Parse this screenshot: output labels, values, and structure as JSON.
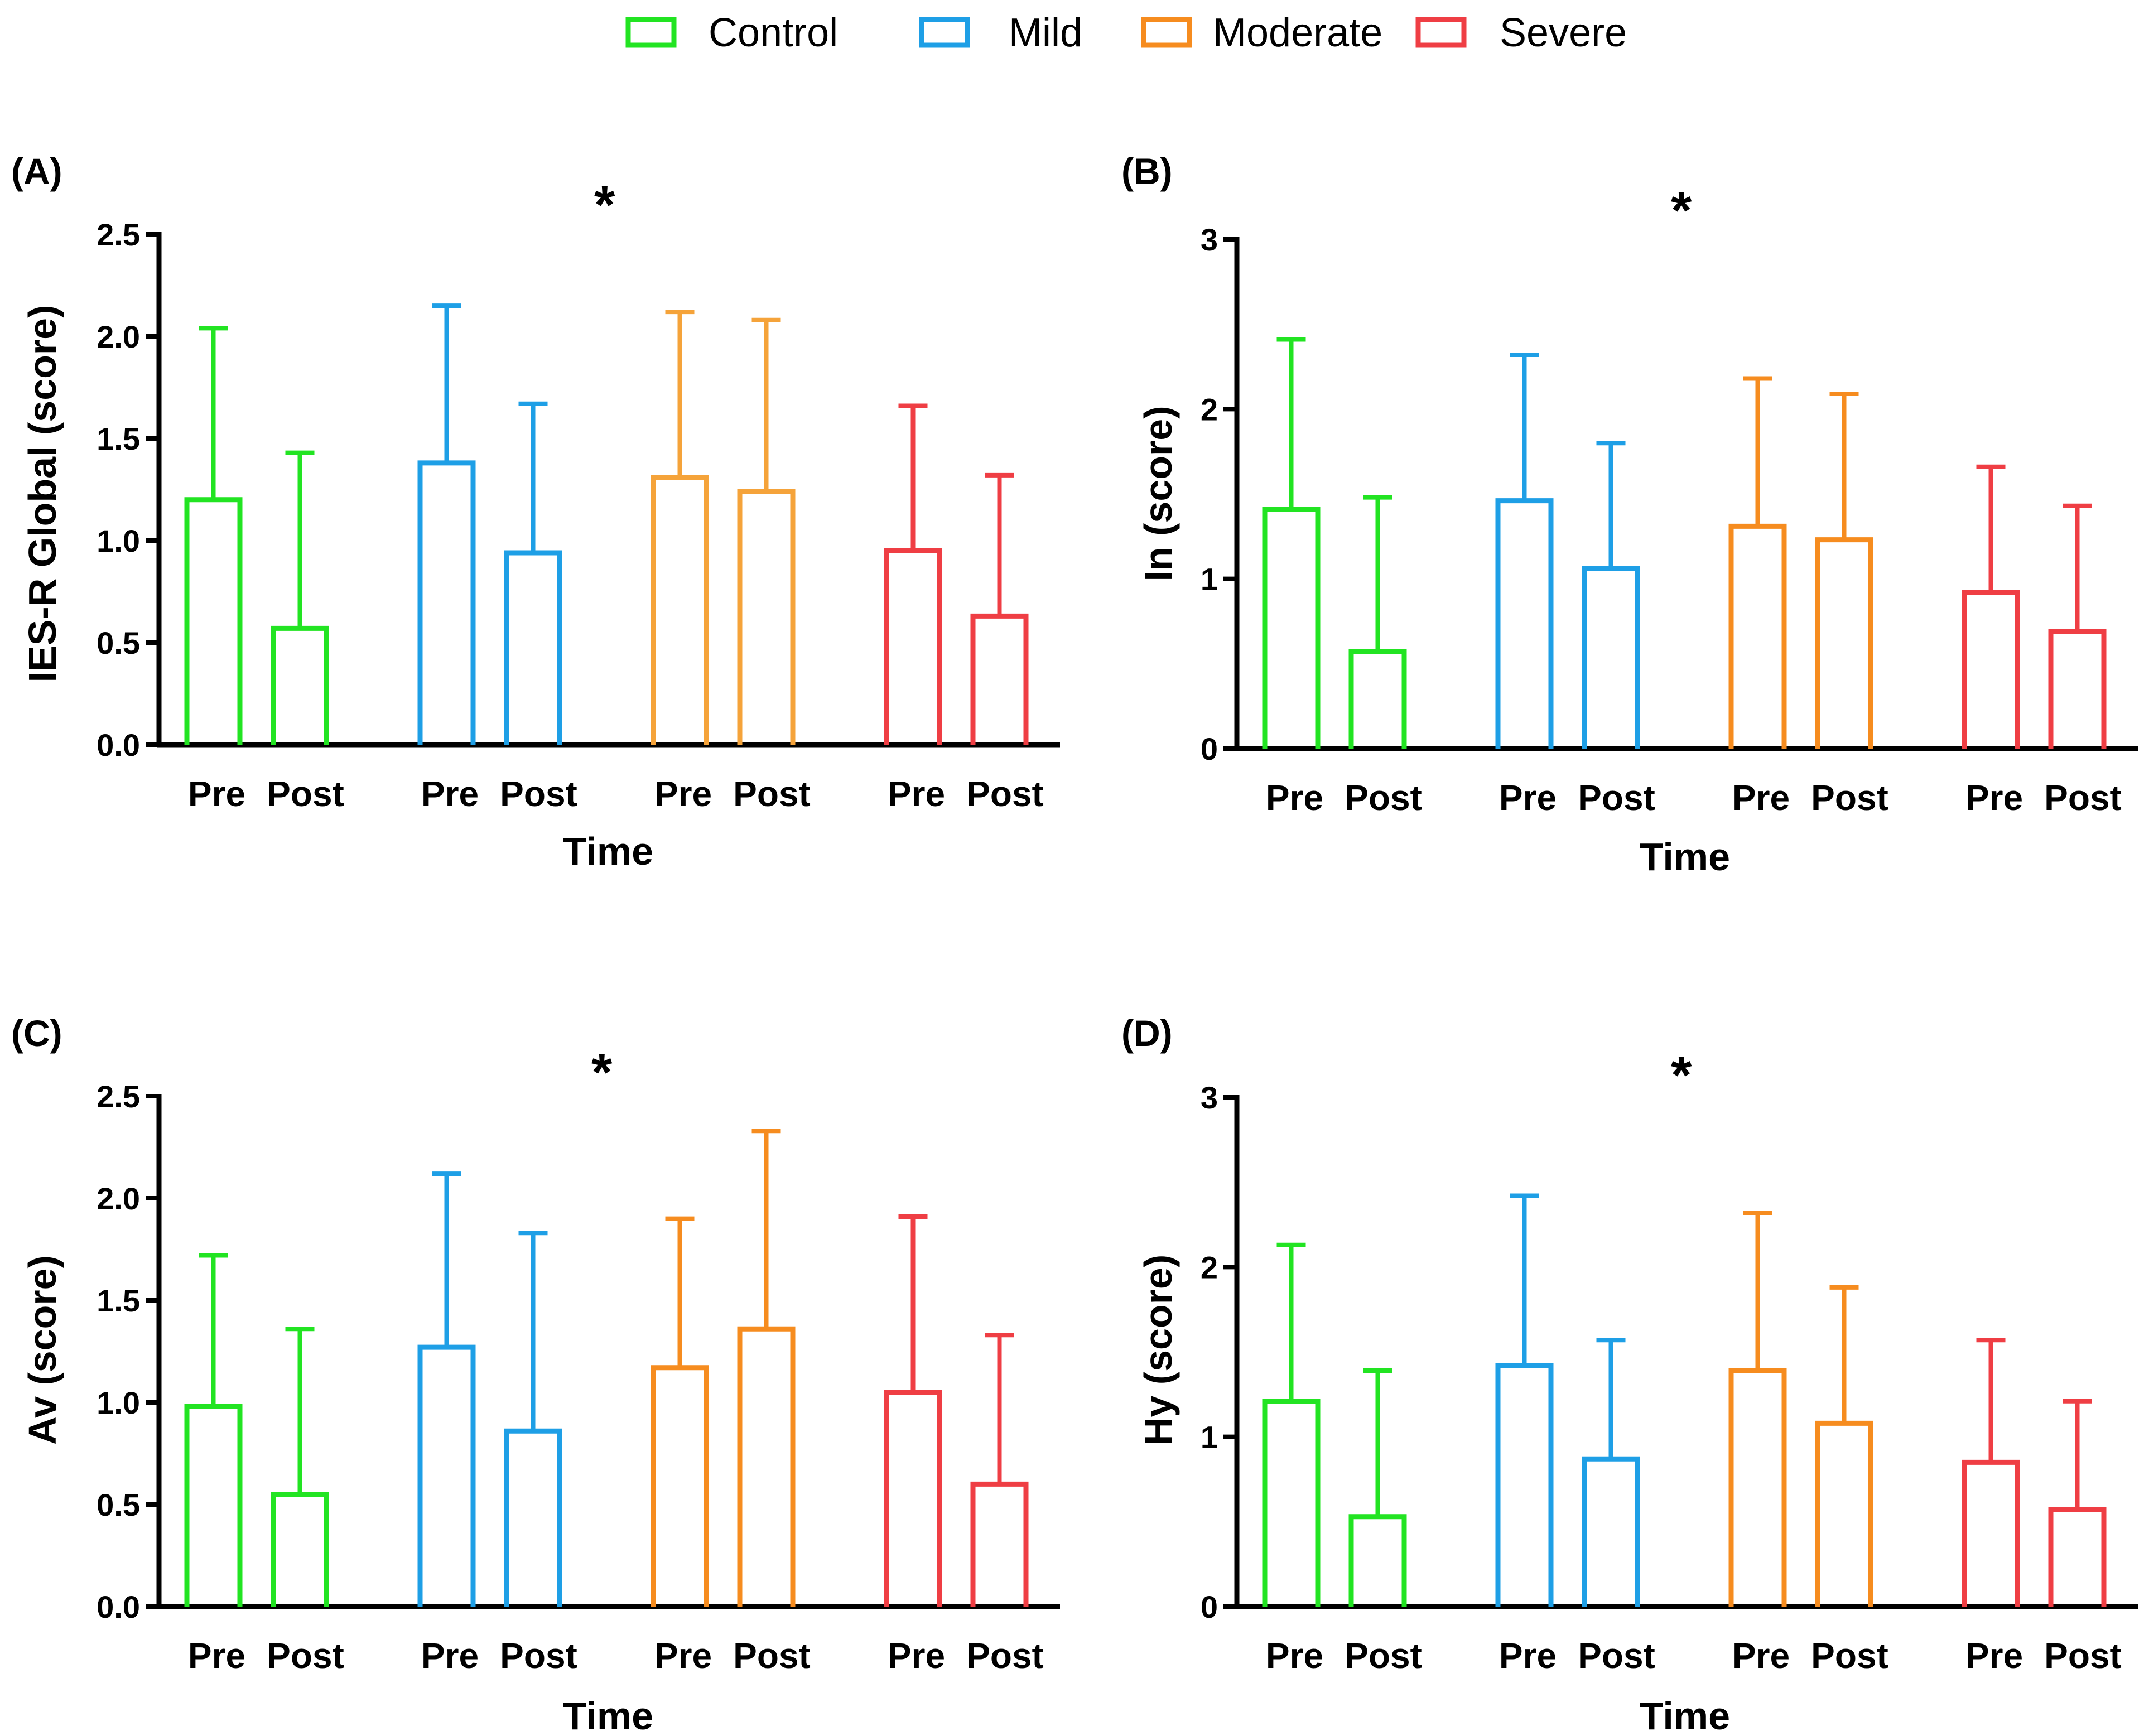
{
  "legend": [
    {
      "label": "Control",
      "color": "#22e422"
    },
    {
      "label": "Mild",
      "color": "#1e9fe6"
    },
    {
      "label": "Moderate",
      "color": "#f68c1f"
    },
    {
      "label": "Severe",
      "color": "#ef3e44"
    }
  ],
  "chart_data": [
    {
      "panel": "(A)",
      "type": "bar",
      "ylabel": "IES-R Global (score)",
      "xlabel": "Time",
      "ylim": [
        0,
        2.5
      ],
      "yticks": [
        "0.0",
        "0.5",
        "1.0",
        "1.5",
        "2.0",
        "2.5"
      ],
      "significance": "*",
      "categories": [
        "Pre",
        "Post"
      ],
      "series": [
        {
          "name": "Control",
          "values": [
            1.2,
            0.57
          ],
          "error": [
            0.84,
            0.86
          ]
        },
        {
          "name": "Mild",
          "values": [
            1.38,
            0.94
          ],
          "error": [
            0.77,
            0.73
          ]
        },
        {
          "name": "Moderate",
          "values": [
            1.31,
            1.24
          ],
          "error": [
            0.81,
            0.84
          ],
          "color": "#f5a33a"
        },
        {
          "name": "Severe",
          "values": [
            0.95,
            0.63
          ],
          "error": [
            0.71,
            0.69
          ]
        }
      ]
    },
    {
      "panel": "(B)",
      "type": "bar",
      "ylabel": "In (score)",
      "xlabel": "Time",
      "ylim": [
        0,
        3
      ],
      "yticks": [
        "0",
        "1",
        "2",
        "3"
      ],
      "significance": "*",
      "categories": [
        "Pre",
        "Post"
      ],
      "series": [
        {
          "name": "Control",
          "values": [
            1.41,
            0.57
          ],
          "error": [
            1.0,
            0.91
          ]
        },
        {
          "name": "Mild",
          "values": [
            1.46,
            1.06
          ],
          "error": [
            0.86,
            0.74
          ]
        },
        {
          "name": "Moderate",
          "values": [
            1.31,
            1.23
          ],
          "error": [
            0.87,
            0.86
          ]
        },
        {
          "name": "Severe",
          "values": [
            0.92,
            0.69
          ],
          "error": [
            0.74,
            0.74
          ]
        }
      ]
    },
    {
      "panel": "(C)",
      "type": "bar",
      "ylabel": "Av  (score)",
      "xlabel": "Time",
      "ylim": [
        0,
        2.5
      ],
      "yticks": [
        "0.0",
        "0.5",
        "1.0",
        "1.5",
        "2.0",
        "2.5"
      ],
      "significance": "*",
      "categories": [
        "Pre",
        "Post"
      ],
      "series": [
        {
          "name": "Control",
          "values": [
            0.98,
            0.55
          ],
          "error": [
            0.74,
            0.81
          ]
        },
        {
          "name": "Mild",
          "values": [
            1.27,
            0.86
          ],
          "error": [
            0.85,
            0.97
          ]
        },
        {
          "name": "Moderate",
          "values": [
            1.17,
            1.36
          ],
          "error": [
            0.73,
            0.97
          ]
        },
        {
          "name": "Severe",
          "values": [
            1.05,
            0.6
          ],
          "error": [
            0.86,
            0.73
          ]
        }
      ]
    },
    {
      "panel": "(D)",
      "type": "bar",
      "ylabel": "Hy (score)",
      "xlabel": "Time",
      "ylim": [
        0,
        3
      ],
      "yticks": [
        "0",
        "1",
        "2",
        "3"
      ],
      "significance": "*",
      "categories": [
        "Pre",
        "Post"
      ],
      "series": [
        {
          "name": "Control",
          "values": [
            1.21,
            0.53
          ],
          "error": [
            0.92,
            0.86
          ]
        },
        {
          "name": "Mild",
          "values": [
            1.42,
            0.87
          ],
          "error": [
            1.0,
            0.7
          ]
        },
        {
          "name": "Moderate",
          "values": [
            1.39,
            1.08
          ],
          "error": [
            0.93,
            0.8
          ]
        },
        {
          "name": "Severe",
          "values": [
            0.85,
            0.57
          ],
          "error": [
            0.72,
            0.64
          ]
        }
      ]
    }
  ]
}
